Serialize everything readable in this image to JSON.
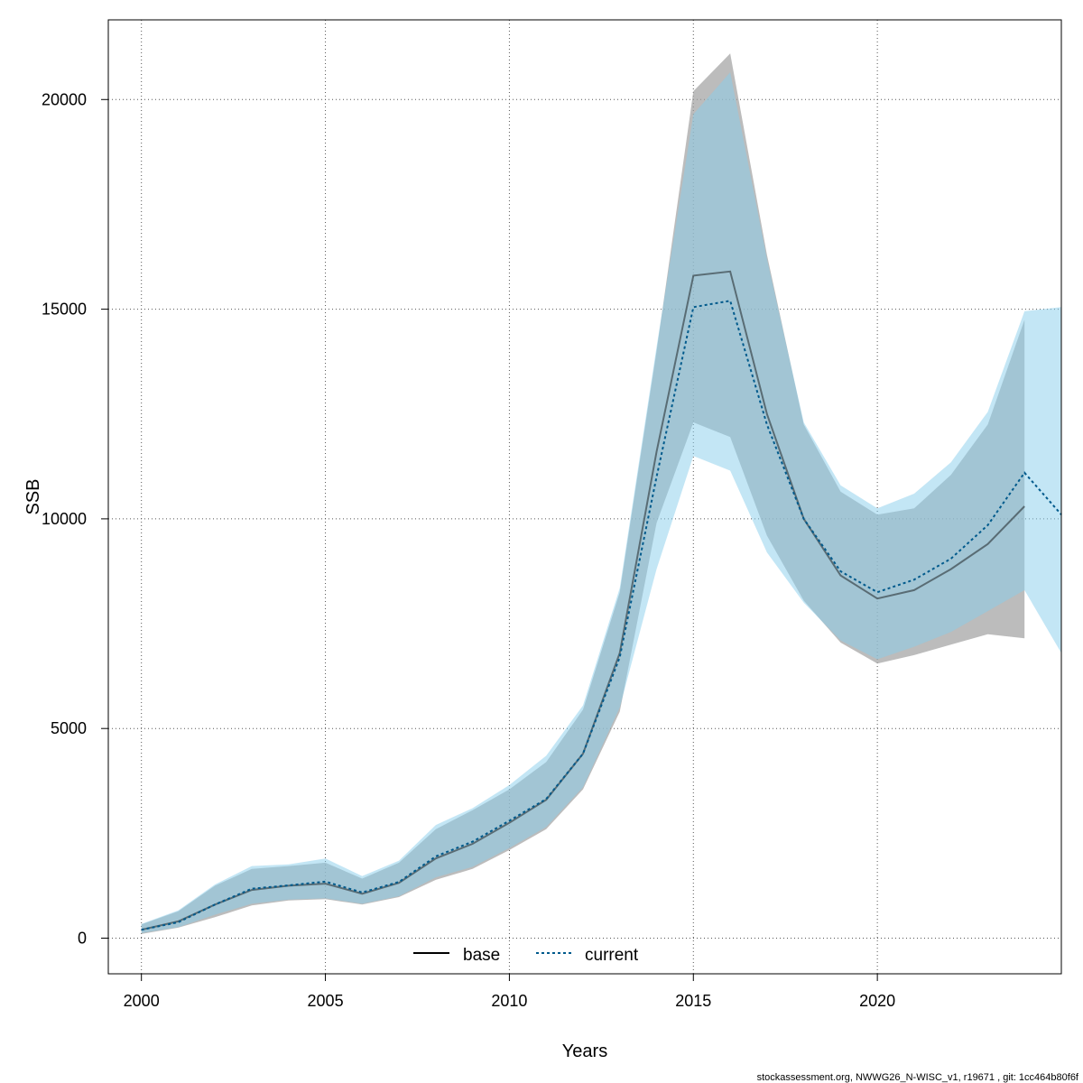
{
  "chart_data": {
    "type": "line",
    "xlabel": "Years",
    "ylabel": "SSB",
    "xlim": [
      1999.1,
      2025.0
    ],
    "ylim": [
      -850,
      21900
    ],
    "xticks": [
      2000,
      2005,
      2010,
      2015,
      2020
    ],
    "yticks": [
      0,
      5000,
      10000,
      15000,
      20000
    ],
    "grid": true,
    "legend": {
      "position": "bottom-center",
      "entries": [
        "base",
        "current"
      ]
    },
    "series": [
      {
        "name": "base",
        "color": "#000000",
        "band_color": "#a0a0a0",
        "line_style": "solid",
        "x": [
          2000,
          2001,
          2002,
          2003,
          2004,
          2005,
          2006,
          2007,
          2008,
          2009,
          2010,
          2011,
          2012,
          2013,
          2014,
          2015,
          2016,
          2017,
          2018,
          2019,
          2020,
          2021,
          2022,
          2023,
          2024
        ],
        "y": [
          200,
          400,
          800,
          1150,
          1250,
          1300,
          1060,
          1320,
          1900,
          2250,
          2750,
          3300,
          4400,
          6800,
          11600,
          15800,
          15900,
          12500,
          10000,
          8650,
          8100,
          8300,
          8800,
          9400,
          10300
        ],
        "lower": [
          100,
          250,
          500,
          780,
          900,
          930,
          800,
          980,
          1390,
          1650,
          2100,
          2600,
          3550,
          5400,
          9900,
          12300,
          11950,
          9600,
          8050,
          7050,
          6550,
          6750,
          7000,
          7250,
          7150
        ],
        "upper": [
          330,
          640,
          1250,
          1650,
          1720,
          1800,
          1420,
          1800,
          2600,
          3050,
          3550,
          4200,
          5450,
          8250,
          14000,
          20200,
          21100,
          16300,
          12250,
          10650,
          10100,
          10250,
          11050,
          12250,
          14750
        ]
      },
      {
        "name": "current",
        "color": "#005a8c",
        "band_color": "#87ceeb",
        "line_style": "dotted",
        "x": [
          2000,
          2001,
          2002,
          2003,
          2004,
          2005,
          2006,
          2007,
          2008,
          2009,
          2010,
          2011,
          2012,
          2013,
          2014,
          2015,
          2016,
          2017,
          2018,
          2019,
          2020,
          2021,
          2022,
          2023,
          2024,
          2025
        ],
        "y": [
          200,
          380,
          800,
          1180,
          1260,
          1350,
          1090,
          1340,
          1950,
          2300,
          2800,
          3320,
          4400,
          6700,
          11000,
          15050,
          15200,
          12250,
          10000,
          8750,
          8250,
          8550,
          9050,
          9850,
          11100,
          10100
        ],
        "lower": [
          120,
          260,
          560,
          820,
          920,
          950,
          820,
          1000,
          1450,
          1700,
          2150,
          2650,
          3600,
          5500,
          8800,
          11500,
          11150,
          9200,
          8000,
          7100,
          6650,
          6950,
          7300,
          7800,
          8300,
          6800
        ],
        "upper": [
          340,
          660,
          1280,
          1720,
          1760,
          1900,
          1480,
          1850,
          2700,
          3100,
          3650,
          4350,
          5550,
          8350,
          14100,
          19650,
          20650,
          16200,
          12300,
          10800,
          10250,
          10600,
          11350,
          12550,
          14950,
          15050
        ]
      }
    ]
  },
  "footnote": "stockassessment.org, NWWG26_N-WISC_v1, r19671 , git: 1cc464b80f6f"
}
